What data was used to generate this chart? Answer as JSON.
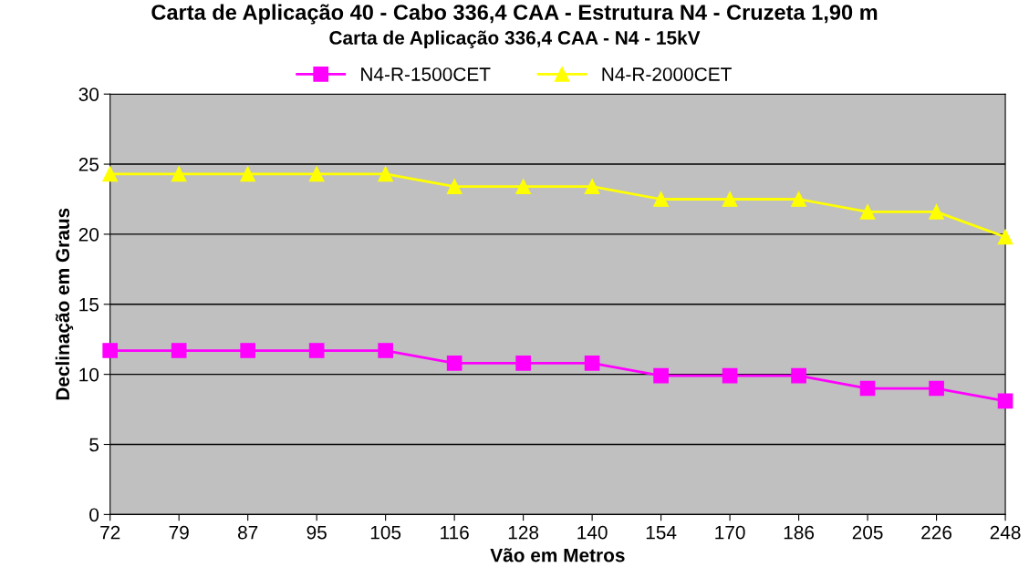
{
  "chart_data": {
    "type": "line",
    "title": "Carta de Aplicação 40 - Cabo 336,4 CAA - Estrutura N4 - Cruzeta 1,90 m",
    "subtitle": "Carta de Aplicação 336,4 CAA - N4 - 15kV",
    "xlabel": "Vão em Metros",
    "ylabel": "Declinação em Graus",
    "categories": [
      "72",
      "79",
      "87",
      "95",
      "105",
      "116",
      "128",
      "140",
      "154",
      "170",
      "186",
      "205",
      "226",
      "248"
    ],
    "series": [
      {
        "name": "N4-R-1500CET",
        "color": "#ff00ff",
        "marker": "square",
        "values": [
          11.7,
          11.7,
          11.7,
          11.7,
          11.7,
          10.8,
          10.8,
          10.8,
          9.9,
          9.9,
          9.9,
          9.0,
          9.0,
          8.1
        ]
      },
      {
        "name": "N4-R-2000CET",
        "color": "#ffff00",
        "marker": "triangle",
        "values": [
          24.3,
          24.3,
          24.3,
          24.3,
          24.3,
          23.4,
          23.4,
          23.4,
          22.5,
          22.5,
          22.5,
          21.6,
          21.6,
          19.8
        ]
      }
    ],
    "ylim": [
      0,
      30
    ],
    "yticks": [
      0,
      5,
      10,
      15,
      20,
      25,
      30
    ],
    "grid": "y",
    "legend": "top",
    "line_style": "solid"
  }
}
